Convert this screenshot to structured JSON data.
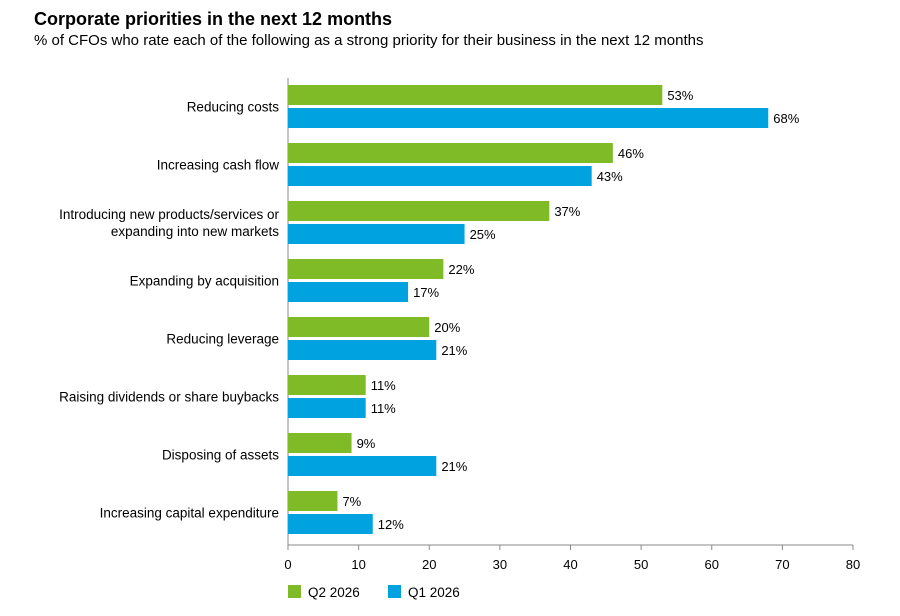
{
  "chart_data": {
    "type": "bar",
    "orientation": "horizontal",
    "title": "Corporate priorities in the next 12 months",
    "subtitle": "% of CFOs who rate each of the following as a strong priority for their business in the next 12 months",
    "categories": [
      "Reducing costs",
      "Increasing cash flow",
      "Introducing new products/services or expanding into new markets",
      "Expanding by acquisition",
      "Reducing leverage",
      "Raising dividends or share buybacks",
      "Disposing of assets",
      "Increasing capital expenditure"
    ],
    "category_lines": [
      [
        "Reducing costs"
      ],
      [
        "Increasing cash flow"
      ],
      [
        "Introducing new products/services or",
        "expanding into new markets"
      ],
      [
        "Expanding by acquisition"
      ],
      [
        "Reducing leverage"
      ],
      [
        "Raising dividends or share buybacks"
      ],
      [
        "Disposing of assets"
      ],
      [
        "Increasing capital expenditure"
      ]
    ],
    "series": [
      {
        "name": "Q2 2026",
        "color": "#7fba27",
        "values": [
          53,
          46,
          37,
          22,
          20,
          11,
          9,
          7
        ]
      },
      {
        "name": "Q1 2026",
        "color": "#00a3e0",
        "values": [
          68,
          43,
          25,
          17,
          21,
          11,
          21,
          12
        ]
      }
    ],
    "value_suffix": "%",
    "xlim": [
      0,
      80
    ],
    "xticks": [
      0,
      10,
      20,
      30,
      40,
      50,
      60,
      70,
      80
    ],
    "grid": false,
    "legend_position": "bottom-left"
  }
}
